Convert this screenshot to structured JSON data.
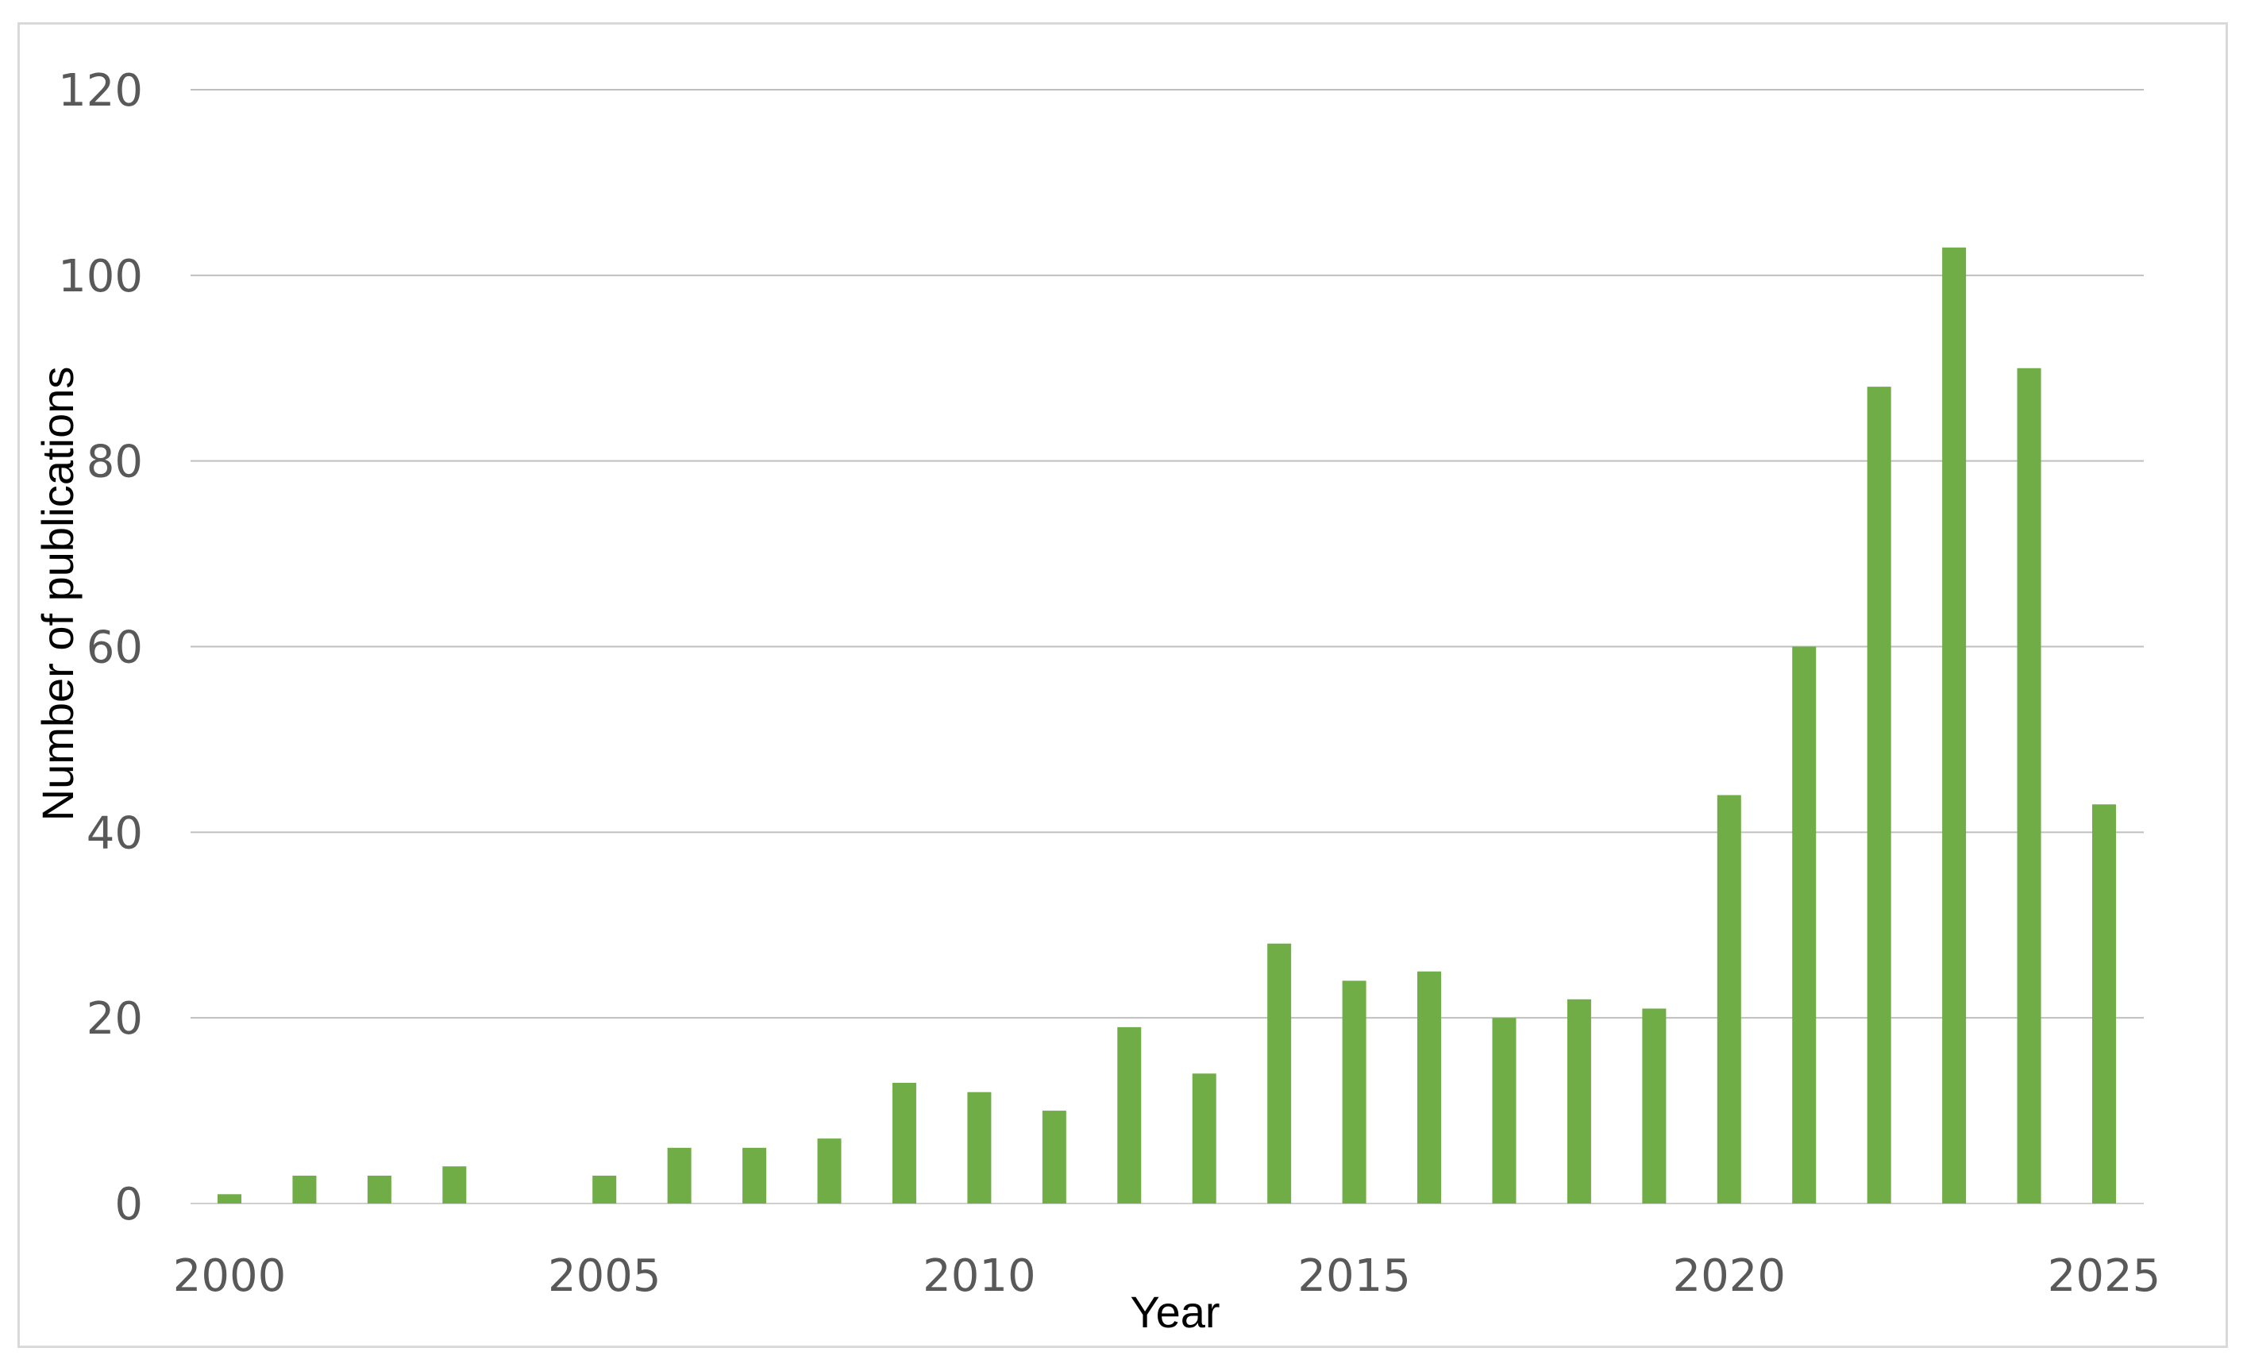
{
  "chart_data": {
    "type": "bar",
    "xlabel": "Year",
    "ylabel": "Number of publications",
    "ylim": [
      0,
      120
    ],
    "yticks": [
      0,
      20,
      40,
      60,
      80,
      100,
      120
    ],
    "xlim": [
      2000,
      2025
    ],
    "xticks": [
      2000,
      2005,
      2010,
      2015,
      2020,
      2025
    ],
    "grid": true,
    "bar_color": "#70ad47",
    "categories": [
      2000,
      2001,
      2002,
      2003,
      2004,
      2005,
      2006,
      2007,
      2008,
      2009,
      2010,
      2011,
      2012,
      2013,
      2014,
      2015,
      2016,
      2017,
      2018,
      2019,
      2020,
      2021,
      2022,
      2023,
      2024,
      2025
    ],
    "values": [
      1,
      3,
      3,
      4,
      0,
      3,
      6,
      6,
      7,
      13,
      12,
      10,
      19,
      14,
      28,
      24,
      25,
      20,
      22,
      21,
      44,
      60,
      88,
      103,
      90,
      43
    ]
  }
}
